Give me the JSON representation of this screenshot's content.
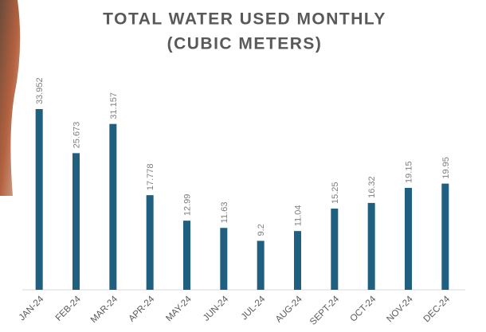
{
  "chart_data": {
    "type": "bar",
    "title": "TOTAL WATER USED MONTHLY",
    "subtitle": "(CUBIC METERS)",
    "categories": [
      "JAN-24",
      "FEB-24",
      "MAR-24",
      "APR-24",
      "MAY-24",
      "JUN-24",
      "JUL-24",
      "AUG-24",
      "SEPT-24",
      "OCT-24",
      "NOV-24",
      "DEC-24"
    ],
    "values": [
      33.952,
      25.673,
      31.157,
      17.778,
      12.99,
      11.63,
      9.2,
      11.04,
      15.25,
      16.32,
      19.15,
      19.95
    ],
    "color": "#1f5f80"
  }
}
